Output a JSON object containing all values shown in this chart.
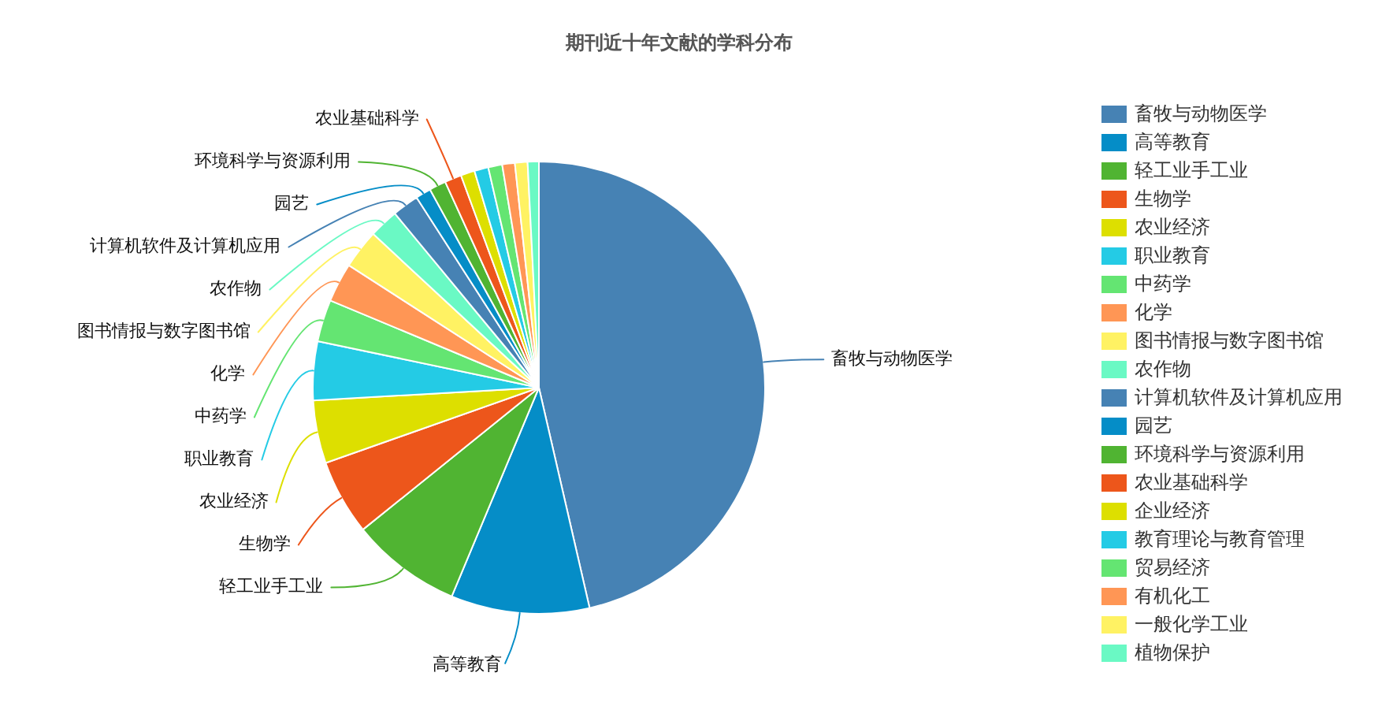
{
  "chart_data": {
    "type": "pie",
    "title": "期刊近十年文献的学科分布",
    "categories": [
      "畜牧与动物医学",
      "高等教育",
      "轻工业手工业",
      "生物学",
      "农业经济",
      "职业教育",
      "中药学",
      "化学",
      "图书情报与数字图书馆",
      "农作物",
      "计算机软件及计算机应用",
      "园艺",
      "环境科学与资源利用",
      "农业基础科学",
      "企业经济",
      "教育理论与教育管理",
      "贸易经济",
      "有机化工",
      "一般化学工业",
      "植物保护"
    ],
    "values": [
      46.4,
      9.9,
      7.9,
      5.4,
      4.5,
      4.2,
      3.0,
      2.8,
      2.8,
      2.1,
      1.9,
      1.1,
      1.2,
      1.2,
      1.0,
      1.0,
      1.0,
      0.9,
      0.9,
      0.8
    ],
    "colors": [
      "#4682b4",
      "#058dc7",
      "#50b432",
      "#ed561b",
      "#dddf00",
      "#24cbe5",
      "#64e572",
      "#ff9655",
      "#fff263",
      "#6af9c4",
      "#4682b4",
      "#058dc7",
      "#50b432",
      "#ed561b",
      "#dddf00",
      "#24cbe5",
      "#64e572",
      "#ff9655",
      "#fff263",
      "#6af9c4"
    ],
    "value_labels": [
      "畜牧与动物医学",
      "高等教育",
      "轻工业手工业",
      "生物学",
      "农业经济",
      "职业教育",
      "中药学",
      "化学",
      "图书情报与数字图书馆",
      "农作物",
      "计算机软件及计算机应用",
      "园艺",
      "环境科学与资源利用",
      "农业基础科学",
      null,
      null,
      null,
      null,
      null,
      null
    ],
    "legend": "right"
  }
}
